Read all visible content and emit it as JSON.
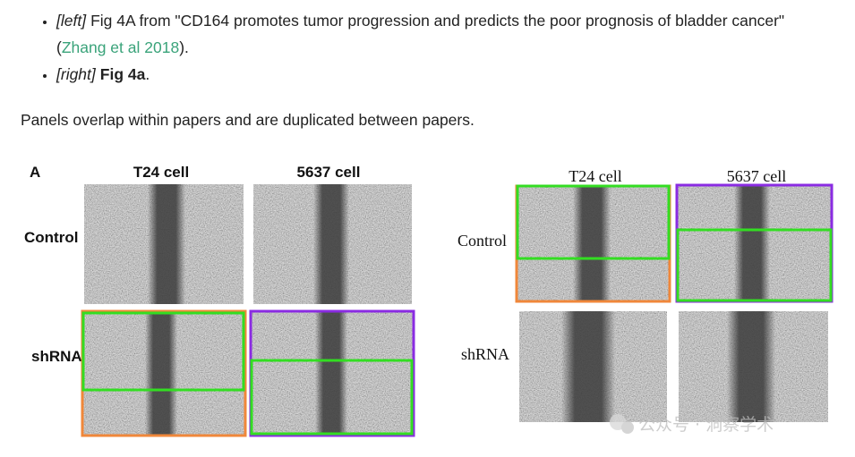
{
  "bullets": [
    {
      "tag": "[left]",
      "text": "Fig 4A from \"CD164 promotes tumor progression and predicts the poor prognosis of bladder cancer\" (",
      "link": "Zhang et al 2018",
      "tail": ")."
    },
    {
      "tag": "[right]",
      "bold": "Fig 4a",
      "tail": "."
    }
  ],
  "paragraph": "Panels overlap within papers and are duplicated between papers.",
  "left_figure": {
    "panel_letter": "A",
    "columns": [
      "T24 cell",
      "5637 cell"
    ],
    "rows": [
      "Control",
      "shRNA"
    ]
  },
  "right_figure": {
    "columns": [
      "T24 cell",
      "5637 cell"
    ],
    "rows": [
      "Control",
      "shRNA"
    ]
  },
  "watermark": "公众号 · 洞察学术"
}
